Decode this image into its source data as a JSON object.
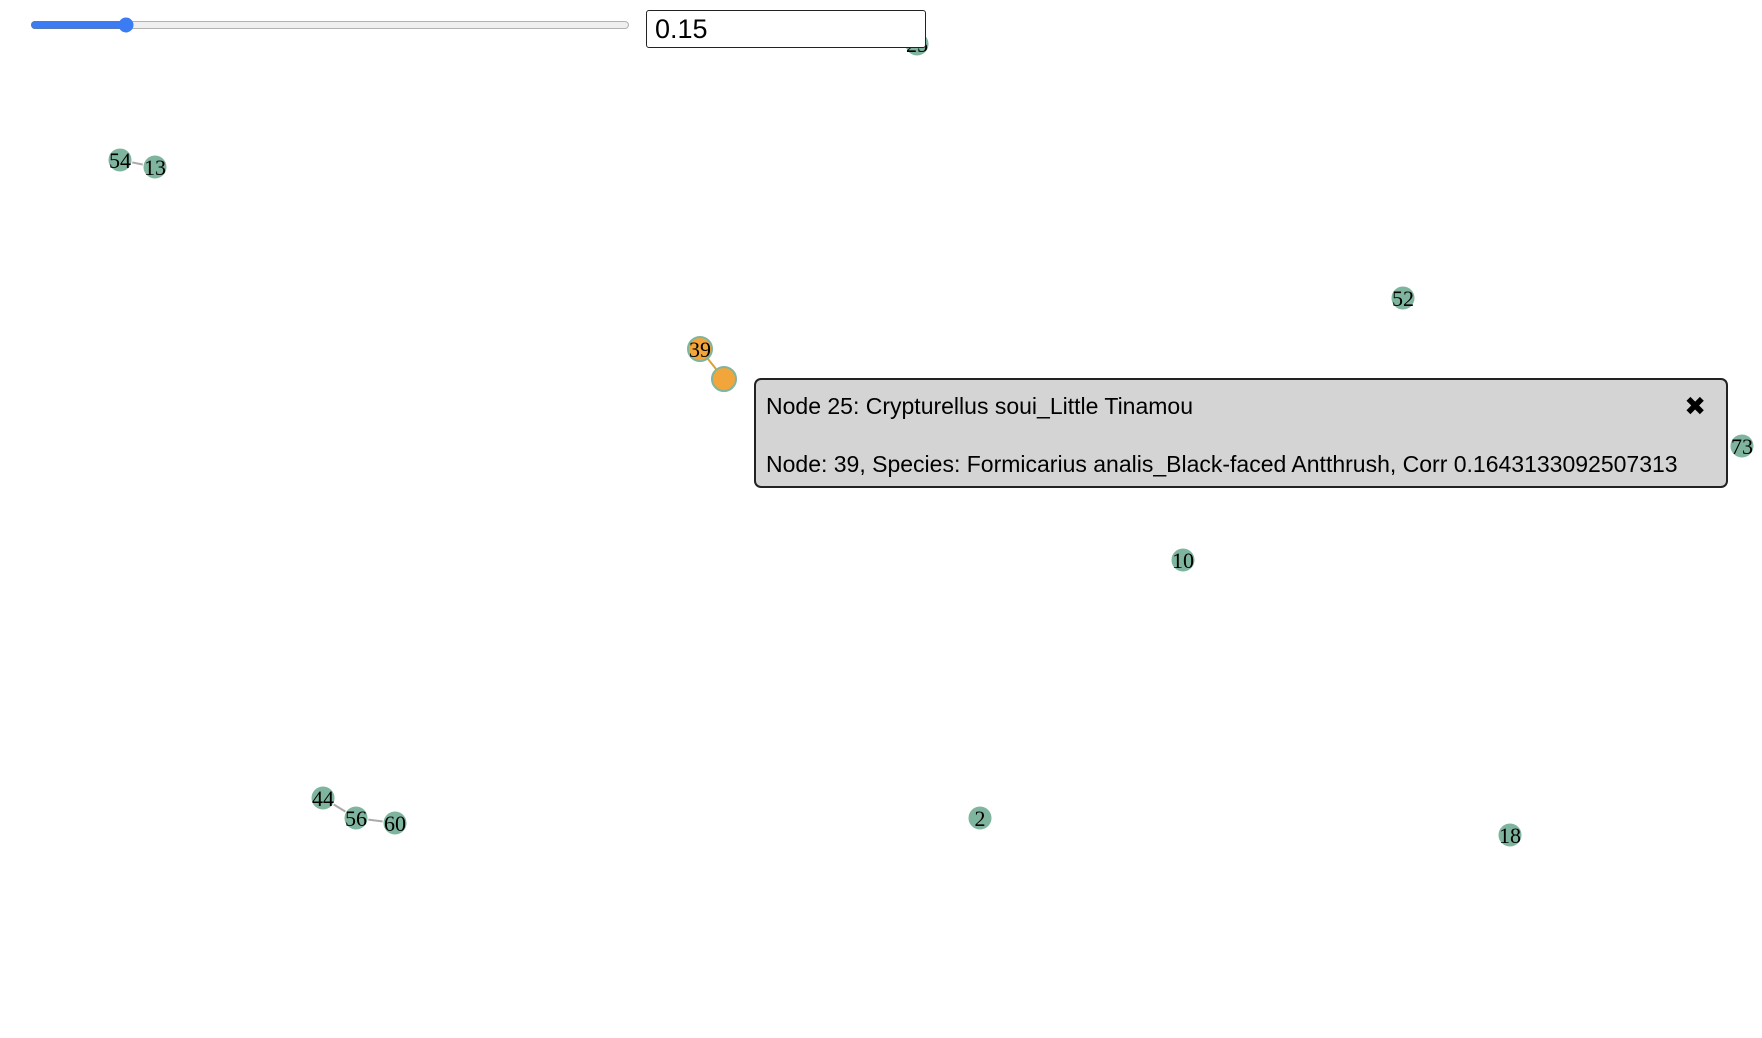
{
  "controls": {
    "threshold_slider_value": 0.15,
    "threshold_input_value": "0.15"
  },
  "colors": {
    "node_fill": "#7fb59e",
    "highlight_fill": "#f2a53a",
    "edge": "#aaaaaa",
    "highlight_edge": "#e0a030",
    "label": "#000000"
  },
  "nodes": [
    {
      "id": "25",
      "label": "25",
      "highlighted": false
    },
    {
      "id": "54",
      "label": "54",
      "highlighted": false
    },
    {
      "id": "13",
      "label": "13",
      "highlighted": false
    },
    {
      "id": "52",
      "label": "52",
      "highlighted": false
    },
    {
      "id": "39",
      "label": "39",
      "highlighted": true
    },
    {
      "id": "25-selected",
      "label": "",
      "highlighted": true
    },
    {
      "id": "73",
      "label": "73",
      "highlighted": false
    },
    {
      "id": "10",
      "label": "10",
      "highlighted": false
    },
    {
      "id": "44",
      "label": "44",
      "highlighted": false
    },
    {
      "id": "56",
      "label": "56",
      "highlighted": false
    },
    {
      "id": "60",
      "label": "60",
      "highlighted": false
    },
    {
      "id": "2",
      "label": "2",
      "highlighted": false
    },
    {
      "id": "18",
      "label": "18",
      "highlighted": false
    }
  ],
  "edges": [
    {
      "source": "54",
      "target": "13",
      "highlighted": false
    },
    {
      "source": "39",
      "target": "25-selected",
      "highlighted": true
    },
    {
      "source": "44",
      "target": "56",
      "highlighted": false
    },
    {
      "source": "56",
      "target": "60",
      "highlighted": false
    }
  ],
  "tooltip": {
    "title": "Node 25: Crypturellus soui_Little Tinamou",
    "close_icon": "✖",
    "line": "Node: 39, Species: Formicarius analis_Black-faced Antthrush, Corr 0.1643133092507313"
  }
}
